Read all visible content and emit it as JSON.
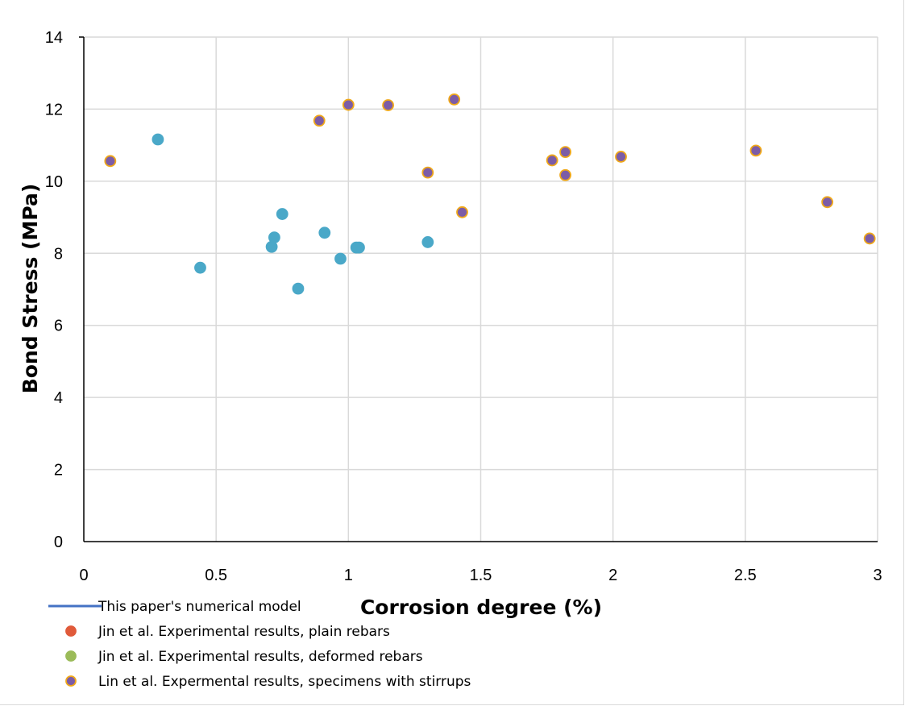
{
  "chart_data": {
    "type": "scatter",
    "xlabel": "Corrosion degree (%)",
    "ylabel": "Bond Stress (MPa)",
    "xlim": [
      0,
      3
    ],
    "ylim": [
      0,
      14
    ],
    "xticks": [
      "0",
      "0.5",
      "1",
      "1.5",
      "2",
      "2.5",
      "3"
    ],
    "yticks": [
      "0",
      "2",
      "4",
      "6",
      "8",
      "10",
      "12",
      "14"
    ],
    "grid": true,
    "legend_position": "bottom-left",
    "series": [
      {
        "name": "This paper's numerical model",
        "kind": "line",
        "color": "#4472c4",
        "points": []
      },
      {
        "name": "Jin et al. Experimental results, plain rebars",
        "kind": "marker",
        "color": "#e05a3a",
        "edge": "#e05a3a",
        "points": []
      },
      {
        "name": "Jin et al. Experimental results, deformed rebars",
        "kind": "marker",
        "color": "#9bbb59",
        "edge": "#9bbb59",
        "points": []
      },
      {
        "name": "Lin et al. Expermental results, specimens with stirrups",
        "kind": "marker",
        "color": "#7c5ca6",
        "edge": "#f0a818",
        "points": [
          [
            0.1,
            10.56
          ],
          [
            0.89,
            11.68
          ],
          [
            1.0,
            12.12
          ],
          [
            1.15,
            12.11
          ],
          [
            1.3,
            10.24
          ],
          [
            1.4,
            12.27
          ],
          [
            1.43,
            9.14
          ],
          [
            1.77,
            10.58
          ],
          [
            1.82,
            10.81
          ],
          [
            1.82,
            10.17
          ],
          [
            2.03,
            10.68
          ],
          [
            2.54,
            10.85
          ],
          [
            2.81,
            9.42
          ],
          [
            2.97,
            8.41
          ]
        ]
      },
      {
        "name": "",
        "kind": "marker",
        "color": "#4aa8c8",
        "edge": "#4aa8c8",
        "in_legend": false,
        "points": [
          [
            0.28,
            11.16
          ],
          [
            0.44,
            7.6
          ],
          [
            0.71,
            8.18
          ],
          [
            0.72,
            8.44
          ],
          [
            0.75,
            9.09
          ],
          [
            0.81,
            7.02
          ],
          [
            0.91,
            8.57
          ],
          [
            0.97,
            7.85
          ],
          [
            1.03,
            8.16
          ],
          [
            1.04,
            8.16
          ],
          [
            1.3,
            8.31
          ]
        ]
      }
    ]
  }
}
